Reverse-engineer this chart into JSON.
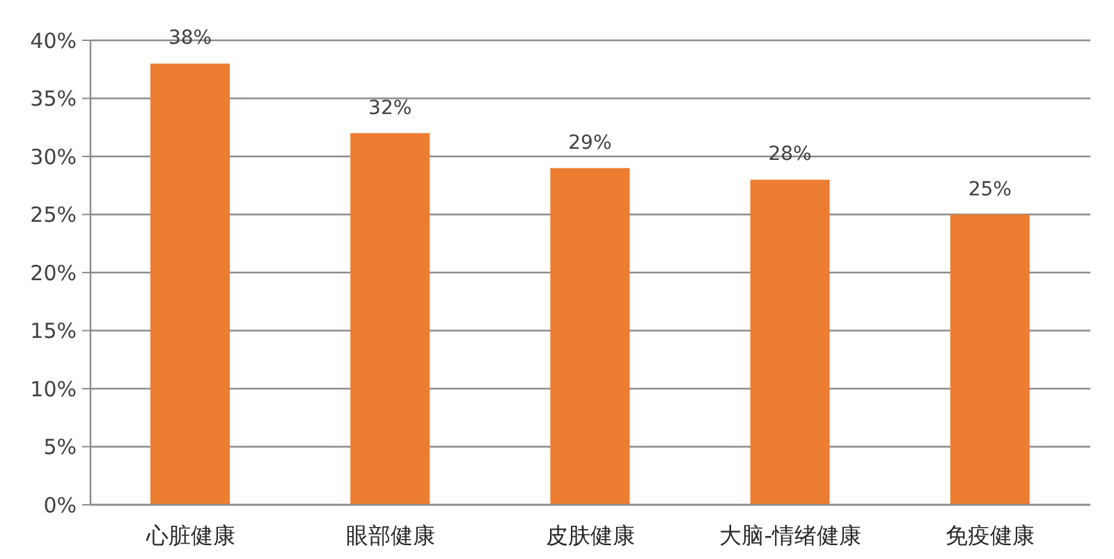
{
  "chart_data": {
    "type": "bar",
    "categories": [
      "心脏健康",
      "眼部健康",
      "皮肤健康",
      "大脑-情绪健康",
      "免疫健康"
    ],
    "values": [
      38,
      32,
      29,
      28,
      25
    ],
    "color": "#ed7d31",
    "value_labels": [
      "38%",
      "32%",
      "29%",
      "28%",
      "25%"
    ],
    "ylim": [
      0,
      40
    ],
    "yticks": [
      {
        "value": 0,
        "label": "0%"
      },
      {
        "value": 5,
        "label": "5%"
      },
      {
        "value": 10,
        "label": "10%"
      },
      {
        "value": 15,
        "label": "15%"
      },
      {
        "value": 20,
        "label": "20%"
      },
      {
        "value": 25,
        "label": "25%"
      },
      {
        "value": 30,
        "label": "30%"
      },
      {
        "value": 35,
        "label": "35%"
      },
      {
        "value": 40,
        "label": "40%"
      }
    ],
    "grid": "y"
  }
}
